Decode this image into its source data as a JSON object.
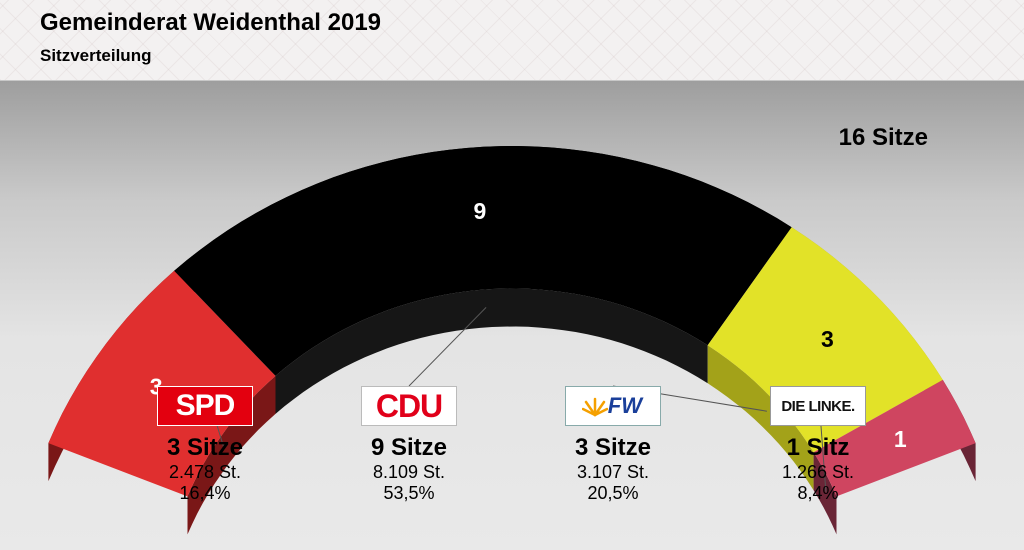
{
  "header": {
    "title": "Gemeinderat Weidenthal 2019",
    "subtitle": "Sitzverteilung"
  },
  "chart_data": {
    "type": "parliament-arc",
    "total_label": "16 Sitze",
    "total_seats": 16,
    "series": [
      {
        "name": "SPD",
        "seats": 3,
        "seats_text": "3 Sitze",
        "votes_text": "2.478 St.",
        "votes": 2478,
        "share_text": "16,4%",
        "share": 16.4,
        "color": "#e02f2f",
        "side_color": "#7a1717",
        "label_color": "#ffffff",
        "seat_label": "3"
      },
      {
        "name": "CDU",
        "seats": 9,
        "seats_text": "9 Sitze",
        "votes_text": "8.109 St.",
        "votes": 8109,
        "share_text": "53,5%",
        "share": 53.5,
        "color": "#000000",
        "side_color": "#161616",
        "label_color": "#ffffff",
        "seat_label": "9"
      },
      {
        "name": "FW",
        "seats": 3,
        "seats_text": "3 Sitze",
        "votes_text": "3.107 St.",
        "votes": 3107,
        "share_text": "20,5%",
        "share": 20.5,
        "color": "#e2e228",
        "side_color": "#a3a219",
        "label_color": "#000000",
        "seat_label": "3"
      },
      {
        "name": "DIE LINKE.",
        "seats": 1,
        "seats_text": "1 Sitz",
        "votes_text": "1.266 St.",
        "votes": 1266,
        "share_text": "8,4%",
        "share": 8.4,
        "color": "#cf4560",
        "side_color": "#6a2536",
        "label_color": "#ffffff",
        "seat_label": "1"
      }
    ]
  },
  "parties": [
    {
      "logo_text": "SPD",
      "seats_text": "3 Sitze",
      "votes_text": "2.478 St.",
      "share_text": "16,4%"
    },
    {
      "logo_text": "CDU",
      "seats_text": "9 Sitze",
      "votes_text": "8.109 St.",
      "share_text": "53,5%"
    },
    {
      "logo_text": "FW",
      "seats_text": "3 Sitze",
      "votes_text": "3.107 St.",
      "share_text": "20,5%"
    },
    {
      "logo_text": "DIE LINKE.",
      "seats_text": "1 Sitz",
      "votes_text": "1.266 St.",
      "share_text": "8,4%"
    }
  ]
}
